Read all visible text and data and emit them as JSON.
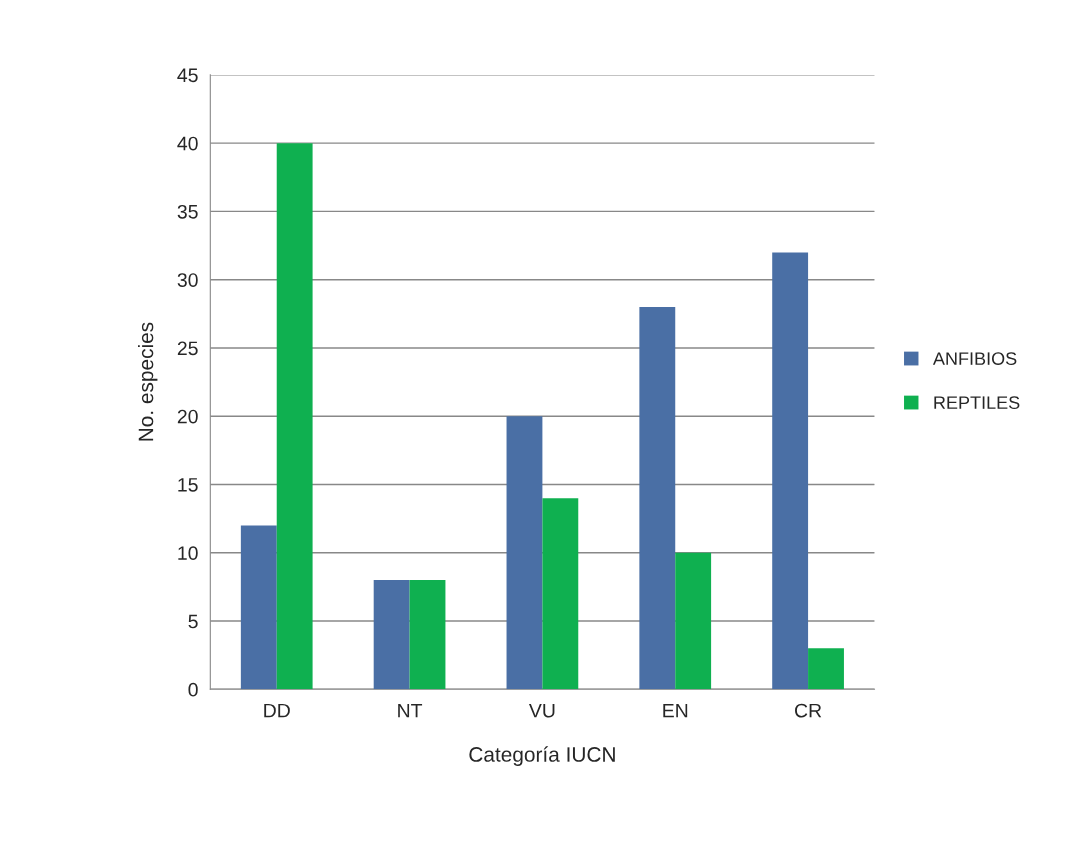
{
  "chart_data": {
    "type": "bar",
    "xlabel": "Categoría IUCN",
    "ylabel": "No. especies",
    "categories": [
      "DD",
      "NT",
      "VU",
      "EN",
      "CR"
    ],
    "series": [
      {
        "name": "ANFIBIOS",
        "color": "#4a6fa5",
        "values": [
          12,
          8,
          20,
          28,
          32
        ]
      },
      {
        "name": "REPTILES",
        "color": "#0fb050",
        "values": [
          40,
          8,
          14,
          10,
          3
        ]
      }
    ],
    "ylim": [
      0,
      45
    ],
    "yticks": [
      0,
      5,
      10,
      15,
      20,
      25,
      30,
      35,
      40,
      45
    ],
    "grid": "y",
    "legend": "right"
  }
}
